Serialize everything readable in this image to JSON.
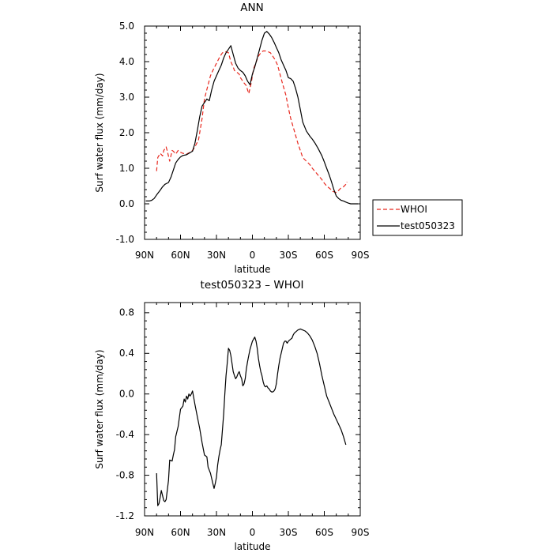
{
  "chart_data": [
    {
      "type": "line",
      "title": "ANN",
      "xlabel": "latitude",
      "ylabel": "Surf water flux (mm/day)",
      "xlim": [
        90,
        -90
      ],
      "ylim": [
        -1.0,
        5.0
      ],
      "x_ticks": [
        90,
        60,
        30,
        0,
        -30,
        -60,
        -90
      ],
      "x_tick_labels": [
        "90N",
        "60N",
        "30N",
        "0",
        "30S",
        "60S",
        "90S"
      ],
      "y_ticks": [
        -1.0,
        0.0,
        1.0,
        2.0,
        3.0,
        4.0,
        5.0
      ],
      "y_tick_labels": [
        "-1.0",
        "0.0",
        "1.0",
        "2.0",
        "3.0",
        "4.0",
        "5.0"
      ],
      "grid": false,
      "legend_position": "right",
      "series": [
        {
          "name": "WHOI",
          "color": "#e8281e",
          "style": "dashed",
          "x": [
            80,
            79,
            77,
            75,
            74,
            72,
            71,
            69,
            67,
            66,
            64,
            62,
            60,
            58,
            55,
            52,
            50,
            48,
            45,
            42,
            40,
            37,
            35,
            33,
            30,
            27,
            25,
            22,
            20,
            18,
            16,
            15,
            13,
            11,
            10,
            7,
            5,
            4,
            3,
            1,
            0,
            -1,
            -3,
            -5,
            -7,
            -9,
            -11,
            -13,
            -15,
            -17,
            -19,
            -21,
            -23,
            -25,
            -28,
            -30,
            -32,
            -35,
            -38,
            -40,
            -42,
            -45,
            -48,
            -50,
            -53,
            -55,
            -58,
            -60,
            -62,
            -65,
            -67,
            -70,
            -72,
            -74,
            -76,
            -78,
            -79
          ],
          "y": [
            0.92,
            1.3,
            1.42,
            1.35,
            1.5,
            1.6,
            1.48,
            1.2,
            1.5,
            1.48,
            1.4,
            1.5,
            1.45,
            1.42,
            1.4,
            1.45,
            1.5,
            1.6,
            1.8,
            2.4,
            2.95,
            3.35,
            3.6,
            3.75,
            3.95,
            4.15,
            4.25,
            4.28,
            4.25,
            4.0,
            3.85,
            3.75,
            3.7,
            3.65,
            3.55,
            3.4,
            3.32,
            3.2,
            3.1,
            3.4,
            3.6,
            3.8,
            3.98,
            4.15,
            4.25,
            4.3,
            4.3,
            4.28,
            4.25,
            4.15,
            4.05,
            3.9,
            3.65,
            3.4,
            3.05,
            2.7,
            2.4,
            2.05,
            1.7,
            1.5,
            1.3,
            1.2,
            1.1,
            1.0,
            0.88,
            0.8,
            0.68,
            0.58,
            0.5,
            0.42,
            0.35,
            0.32,
            0.38,
            0.45,
            0.48,
            0.55,
            0.62
          ]
        },
        {
          "name": "test050323",
          "color": "#000000",
          "style": "solid",
          "x": [
            89,
            86,
            84,
            82,
            80,
            77,
            75,
            73,
            70,
            68,
            66,
            64,
            62,
            60,
            58,
            55,
            53,
            50,
            48,
            46,
            44,
            42,
            40,
            38,
            36,
            34,
            32,
            30,
            28,
            26,
            24,
            22,
            20,
            18,
            16,
            14,
            12,
            10,
            8,
            6,
            4,
            2,
            0,
            -2,
            -4,
            -6,
            -8,
            -10,
            -12,
            -14,
            -16,
            -18,
            -20,
            -22,
            -24,
            -26,
            -28,
            -30,
            -32,
            -34,
            -36,
            -38,
            -40,
            -42,
            -45,
            -48,
            -50,
            -52,
            -55,
            -58,
            -60,
            -62,
            -64,
            -66,
            -68,
            -70,
            -72,
            -74,
            -76,
            -78,
            -80,
            -82,
            -85,
            -88
          ],
          "y": [
            0.08,
            0.08,
            0.1,
            0.15,
            0.25,
            0.38,
            0.48,
            0.55,
            0.6,
            0.75,
            0.95,
            1.15,
            1.25,
            1.32,
            1.36,
            1.38,
            1.42,
            1.48,
            1.7,
            2.05,
            2.45,
            2.75,
            2.85,
            2.95,
            2.9,
            3.2,
            3.45,
            3.6,
            3.75,
            3.9,
            4.1,
            4.25,
            4.35,
            4.45,
            4.2,
            3.95,
            3.82,
            3.75,
            3.7,
            3.6,
            3.45,
            3.35,
            3.65,
            3.85,
            4.1,
            4.35,
            4.6,
            4.8,
            4.85,
            4.78,
            4.68,
            4.55,
            4.4,
            4.25,
            4.05,
            3.9,
            3.75,
            3.55,
            3.52,
            3.45,
            3.25,
            3.0,
            2.65,
            2.3,
            2.05,
            1.9,
            1.82,
            1.72,
            1.55,
            1.35,
            1.18,
            1.0,
            0.82,
            0.62,
            0.4,
            0.22,
            0.15,
            0.1,
            0.08,
            0.05,
            0.02,
            0.0,
            0.0,
            0.0
          ]
        }
      ]
    },
    {
      "type": "line",
      "title": "test050323 – WHOI",
      "xlabel": "latitude",
      "ylabel": "Surf water flux (mm/day)",
      "xlim": [
        90,
        -90
      ],
      "ylim": [
        -1.2,
        0.9
      ],
      "x_ticks": [
        90,
        60,
        30,
        0,
        -30,
        -60,
        -90
      ],
      "x_tick_labels": [
        "90N",
        "60N",
        "30N",
        "0",
        "30S",
        "60S",
        "90S"
      ],
      "y_ticks": [
        -1.2,
        -0.8,
        -0.4,
        0.0,
        0.4,
        0.8
      ],
      "y_tick_labels": [
        "-1.2",
        "-0.8",
        "-0.4",
        "0.0",
        "0.4",
        "0.8"
      ],
      "grid": false,
      "series": [
        {
          "color": "#000000",
          "style": "solid",
          "x": [
            80,
            79,
            78,
            77,
            76,
            74,
            73,
            72,
            70,
            69,
            67,
            66,
            65,
            64,
            62,
            60,
            58,
            57,
            56,
            55,
            54,
            53,
            52,
            51,
            50,
            48,
            46,
            44,
            42,
            40,
            38,
            37,
            35,
            33,
            32,
            31,
            30,
            29,
            28,
            27,
            26,
            25,
            24,
            23,
            22,
            21,
            20,
            19,
            18,
            17,
            16,
            15,
            14,
            13,
            12,
            11,
            10,
            9,
            8,
            7,
            6,
            5,
            4,
            3,
            2,
            1,
            0,
            -1,
            -2,
            -3,
            -4,
            -5,
            -6,
            -7,
            -8,
            -9,
            -10,
            -11,
            -12,
            -13,
            -14,
            -15,
            -16,
            -17,
            -18,
            -19,
            -20,
            -21,
            -22,
            -23,
            -24,
            -25,
            -26,
            -27,
            -28,
            -29,
            -30,
            -31,
            -32,
            -33,
            -34,
            -35,
            -36,
            -38,
            -40,
            -42,
            -44,
            -46,
            -48,
            -50,
            -52,
            -54,
            -56,
            -58,
            -60,
            -62,
            -64,
            -66,
            -68,
            -70,
            -72,
            -74,
            -76,
            -78
          ],
          "y": [
            -0.78,
            -1.1,
            -1.08,
            -1.02,
            -0.95,
            -1.05,
            -1.06,
            -1.04,
            -0.85,
            -0.65,
            -0.66,
            -0.6,
            -0.55,
            -0.42,
            -0.32,
            -0.15,
            -0.12,
            -0.05,
            -0.08,
            -0.02,
            -0.05,
            0.0,
            -0.02,
            0.0,
            0.03,
            -0.1,
            -0.22,
            -0.34,
            -0.48,
            -0.6,
            -0.62,
            -0.72,
            -0.78,
            -0.88,
            -0.93,
            -0.88,
            -0.82,
            -0.7,
            -0.62,
            -0.55,
            -0.5,
            -0.35,
            -0.2,
            0.0,
            0.18,
            0.3,
            0.45,
            0.43,
            0.38,
            0.3,
            0.22,
            0.18,
            0.15,
            0.17,
            0.2,
            0.22,
            0.18,
            0.15,
            0.08,
            0.1,
            0.15,
            0.25,
            0.32,
            0.38,
            0.44,
            0.48,
            0.52,
            0.54,
            0.56,
            0.52,
            0.45,
            0.35,
            0.28,
            0.22,
            0.18,
            0.12,
            0.08,
            0.07,
            0.08,
            0.06,
            0.05,
            0.03,
            0.02,
            0.02,
            0.03,
            0.05,
            0.1,
            0.2,
            0.28,
            0.35,
            0.4,
            0.45,
            0.5,
            0.52,
            0.52,
            0.5,
            0.52,
            0.53,
            0.54,
            0.55,
            0.58,
            0.6,
            0.61,
            0.63,
            0.64,
            0.63,
            0.62,
            0.6,
            0.57,
            0.53,
            0.47,
            0.4,
            0.3,
            0.18,
            0.08,
            -0.02,
            -0.08,
            -0.14,
            -0.2,
            -0.25,
            -0.3,
            -0.35,
            -0.42,
            -0.5
          ]
        }
      ]
    }
  ]
}
